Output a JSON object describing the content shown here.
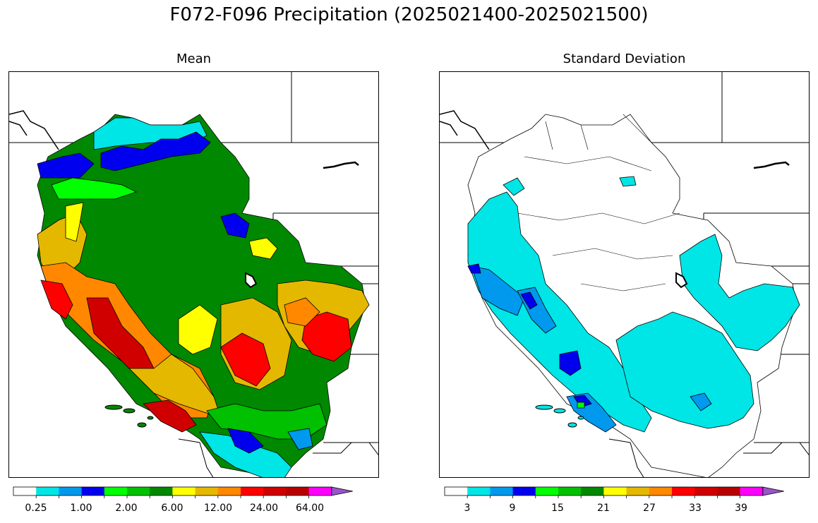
{
  "figure": {
    "title": "F072-F096 Precipitation (2025021400-2025021500)"
  },
  "panels": {
    "mean": {
      "title": "Mean",
      "colorbar": {
        "colors": [
          "#ffffff",
          "#00e5e5",
          "#0099ee",
          "#0000ee",
          "#00ff00",
          "#00c000",
          "#008800",
          "#ffff00",
          "#e5b800",
          "#ff8800",
          "#ff0000",
          "#d00000",
          "#b80000",
          "#ff00ff",
          "#9955cc"
        ],
        "tick_labels": [
          "0.25",
          "1.00",
          "2.00",
          "6.00",
          "12.00",
          "24.00",
          "64.00"
        ]
      }
    },
    "stdev": {
      "title": "Standard Deviation",
      "colorbar": {
        "colors": [
          "#ffffff",
          "#00e5e5",
          "#0099ee",
          "#0000ee",
          "#00ff00",
          "#00c000",
          "#008800",
          "#ffff00",
          "#e5b800",
          "#ff8800",
          "#ff0000",
          "#d00000",
          "#b80000",
          "#ff00ff",
          "#9955cc"
        ],
        "tick_labels": [
          "3",
          "9",
          "15",
          "21",
          "27",
          "33",
          "39"
        ]
      }
    }
  }
}
